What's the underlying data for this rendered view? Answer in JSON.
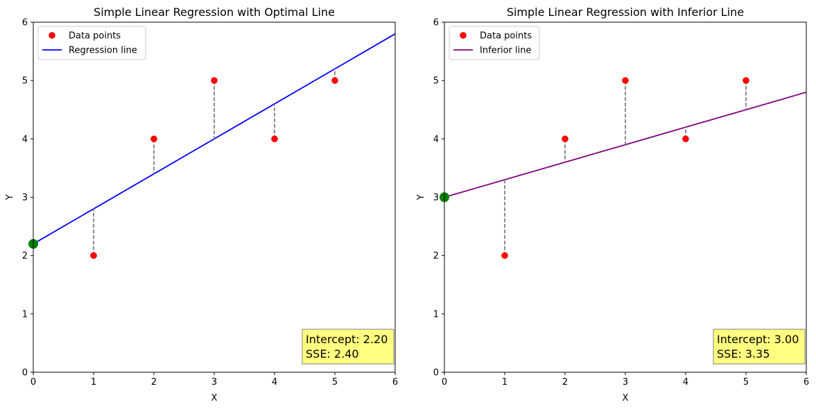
{
  "chart_data": [
    {
      "type": "scatter",
      "title": "Simple Linear Regression with Optimal Line",
      "xlabel": "X",
      "ylabel": "Y",
      "xlim": [
        0,
        6
      ],
      "ylim": [
        0,
        6
      ],
      "xticks": [
        "0",
        "1",
        "2",
        "3",
        "4",
        "5",
        "6"
      ],
      "yticks": [
        "0",
        "1",
        "2",
        "3",
        "4",
        "5",
        "6"
      ],
      "grid": false,
      "legend_position": "top-left",
      "series": [
        {
          "name": "Data points",
          "kind": "scatter",
          "color": "#ff0000",
          "x": [
            1,
            2,
            3,
            4,
            5
          ],
          "y": [
            2,
            4,
            5,
            4,
            5
          ]
        },
        {
          "name": "Regression line",
          "kind": "line",
          "color": "#0000ff",
          "intercept": 2.2,
          "slope": 0.6
        }
      ],
      "residual_color": "#808080",
      "intercept_marker_color": "#008000",
      "annotation": {
        "intercept_text": "Intercept: 2.20",
        "sse_text": "SSE: 2.40",
        "position": "bottom-right",
        "background": "#ffff80"
      }
    },
    {
      "type": "scatter",
      "title": "Simple Linear Regression with Inferior Line",
      "xlabel": "X",
      "ylabel": "Y",
      "xlim": [
        0,
        6
      ],
      "ylim": [
        0,
        6
      ],
      "xticks": [
        "0",
        "1",
        "2",
        "3",
        "4",
        "5",
        "6"
      ],
      "yticks": [
        "0",
        "1",
        "2",
        "3",
        "4",
        "5",
        "6"
      ],
      "grid": false,
      "legend_position": "top-left",
      "series": [
        {
          "name": "Data points",
          "kind": "scatter",
          "color": "#ff0000",
          "x": [
            1,
            2,
            3,
            4,
            5
          ],
          "y": [
            2,
            4,
            5,
            4,
            5
          ]
        },
        {
          "name": "Inferior line",
          "kind": "line",
          "color": "#800080",
          "intercept": 3.0,
          "slope": 0.3
        }
      ],
      "residual_color": "#808080",
      "intercept_marker_color": "#008000",
      "annotation": {
        "intercept_text": "Intercept: 3.00",
        "sse_text": "SSE: 3.35",
        "position": "bottom-right",
        "background": "#ffff80"
      }
    }
  ]
}
